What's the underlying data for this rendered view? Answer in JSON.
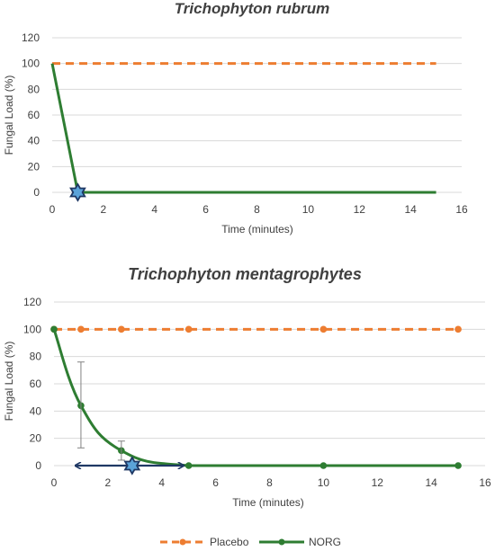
{
  "colors": {
    "placebo": "#ED7D31",
    "norg": "#2E7D32",
    "grid": "#D9D9D9",
    "text": "#404040",
    "star_fill": "#5BA3D9",
    "star_stroke": "#1F3864",
    "arrow": "#1F3864",
    "errorbar": "#808080"
  },
  "legend": {
    "placement": "bottom-center",
    "items": [
      {
        "label": "Placebo",
        "color": "#ED7D31",
        "style": "dashed",
        "marker": "circle"
      },
      {
        "label": "NORG",
        "color": "#2E7D32",
        "style": "solid",
        "marker": "circle"
      }
    ]
  },
  "chart_data": [
    {
      "type": "line",
      "title": "Trichophyton rubrum",
      "xlabel": "Time (minutes)",
      "ylabel": "Fungal Load (%)",
      "xlim": [
        0,
        16
      ],
      "ylim": [
        0,
        120
      ],
      "xticks": [
        0,
        2,
        4,
        6,
        8,
        10,
        12,
        14,
        16
      ],
      "yticks": [
        0,
        20,
        40,
        60,
        80,
        100,
        120
      ],
      "grid": "horizontal",
      "series": [
        {
          "name": "Placebo",
          "style": "dashed",
          "markers": false,
          "x": [
            0,
            15
          ],
          "y": [
            100,
            100
          ]
        },
        {
          "name": "NORG",
          "style": "solid",
          "markers": false,
          "x": [
            0,
            1,
            15
          ],
          "y": [
            100,
            0,
            0
          ]
        }
      ],
      "star": {
        "x": 1,
        "y": 0
      },
      "arrow": null,
      "error_bars": []
    },
    {
      "type": "line",
      "title": "Trichophyton mentagrophytes",
      "xlabel": "Time (minutes)",
      "ylabel": "Fungal Load (%)",
      "xlim": [
        0,
        16
      ],
      "ylim": [
        0,
        120
      ],
      "xticks": [
        0,
        2,
        4,
        6,
        8,
        10,
        12,
        14,
        16
      ],
      "yticks": [
        0,
        20,
        40,
        60,
        80,
        100,
        120
      ],
      "grid": "horizontal",
      "series": [
        {
          "name": "Placebo",
          "style": "dashed",
          "markers": true,
          "x": [
            0,
            1,
            2.5,
            5,
            10,
            15
          ],
          "y": [
            100,
            100,
            100,
            100,
            100,
            100
          ]
        },
        {
          "name": "NORG",
          "style": "solid",
          "markers": true,
          "smooth": true,
          "x": [
            0,
            1,
            2.5,
            5,
            10,
            15
          ],
          "y": [
            100,
            44,
            11,
            0,
            0,
            0
          ]
        }
      ],
      "star": {
        "x": 2.9,
        "y": 0
      },
      "arrow": {
        "x_start": 0.8,
        "x_end": 4.8,
        "y": 0
      },
      "error_bars": [
        {
          "x": 1,
          "low": 13,
          "high": 76
        },
        {
          "x": 2.5,
          "low": 4,
          "high": 18
        }
      ]
    }
  ]
}
